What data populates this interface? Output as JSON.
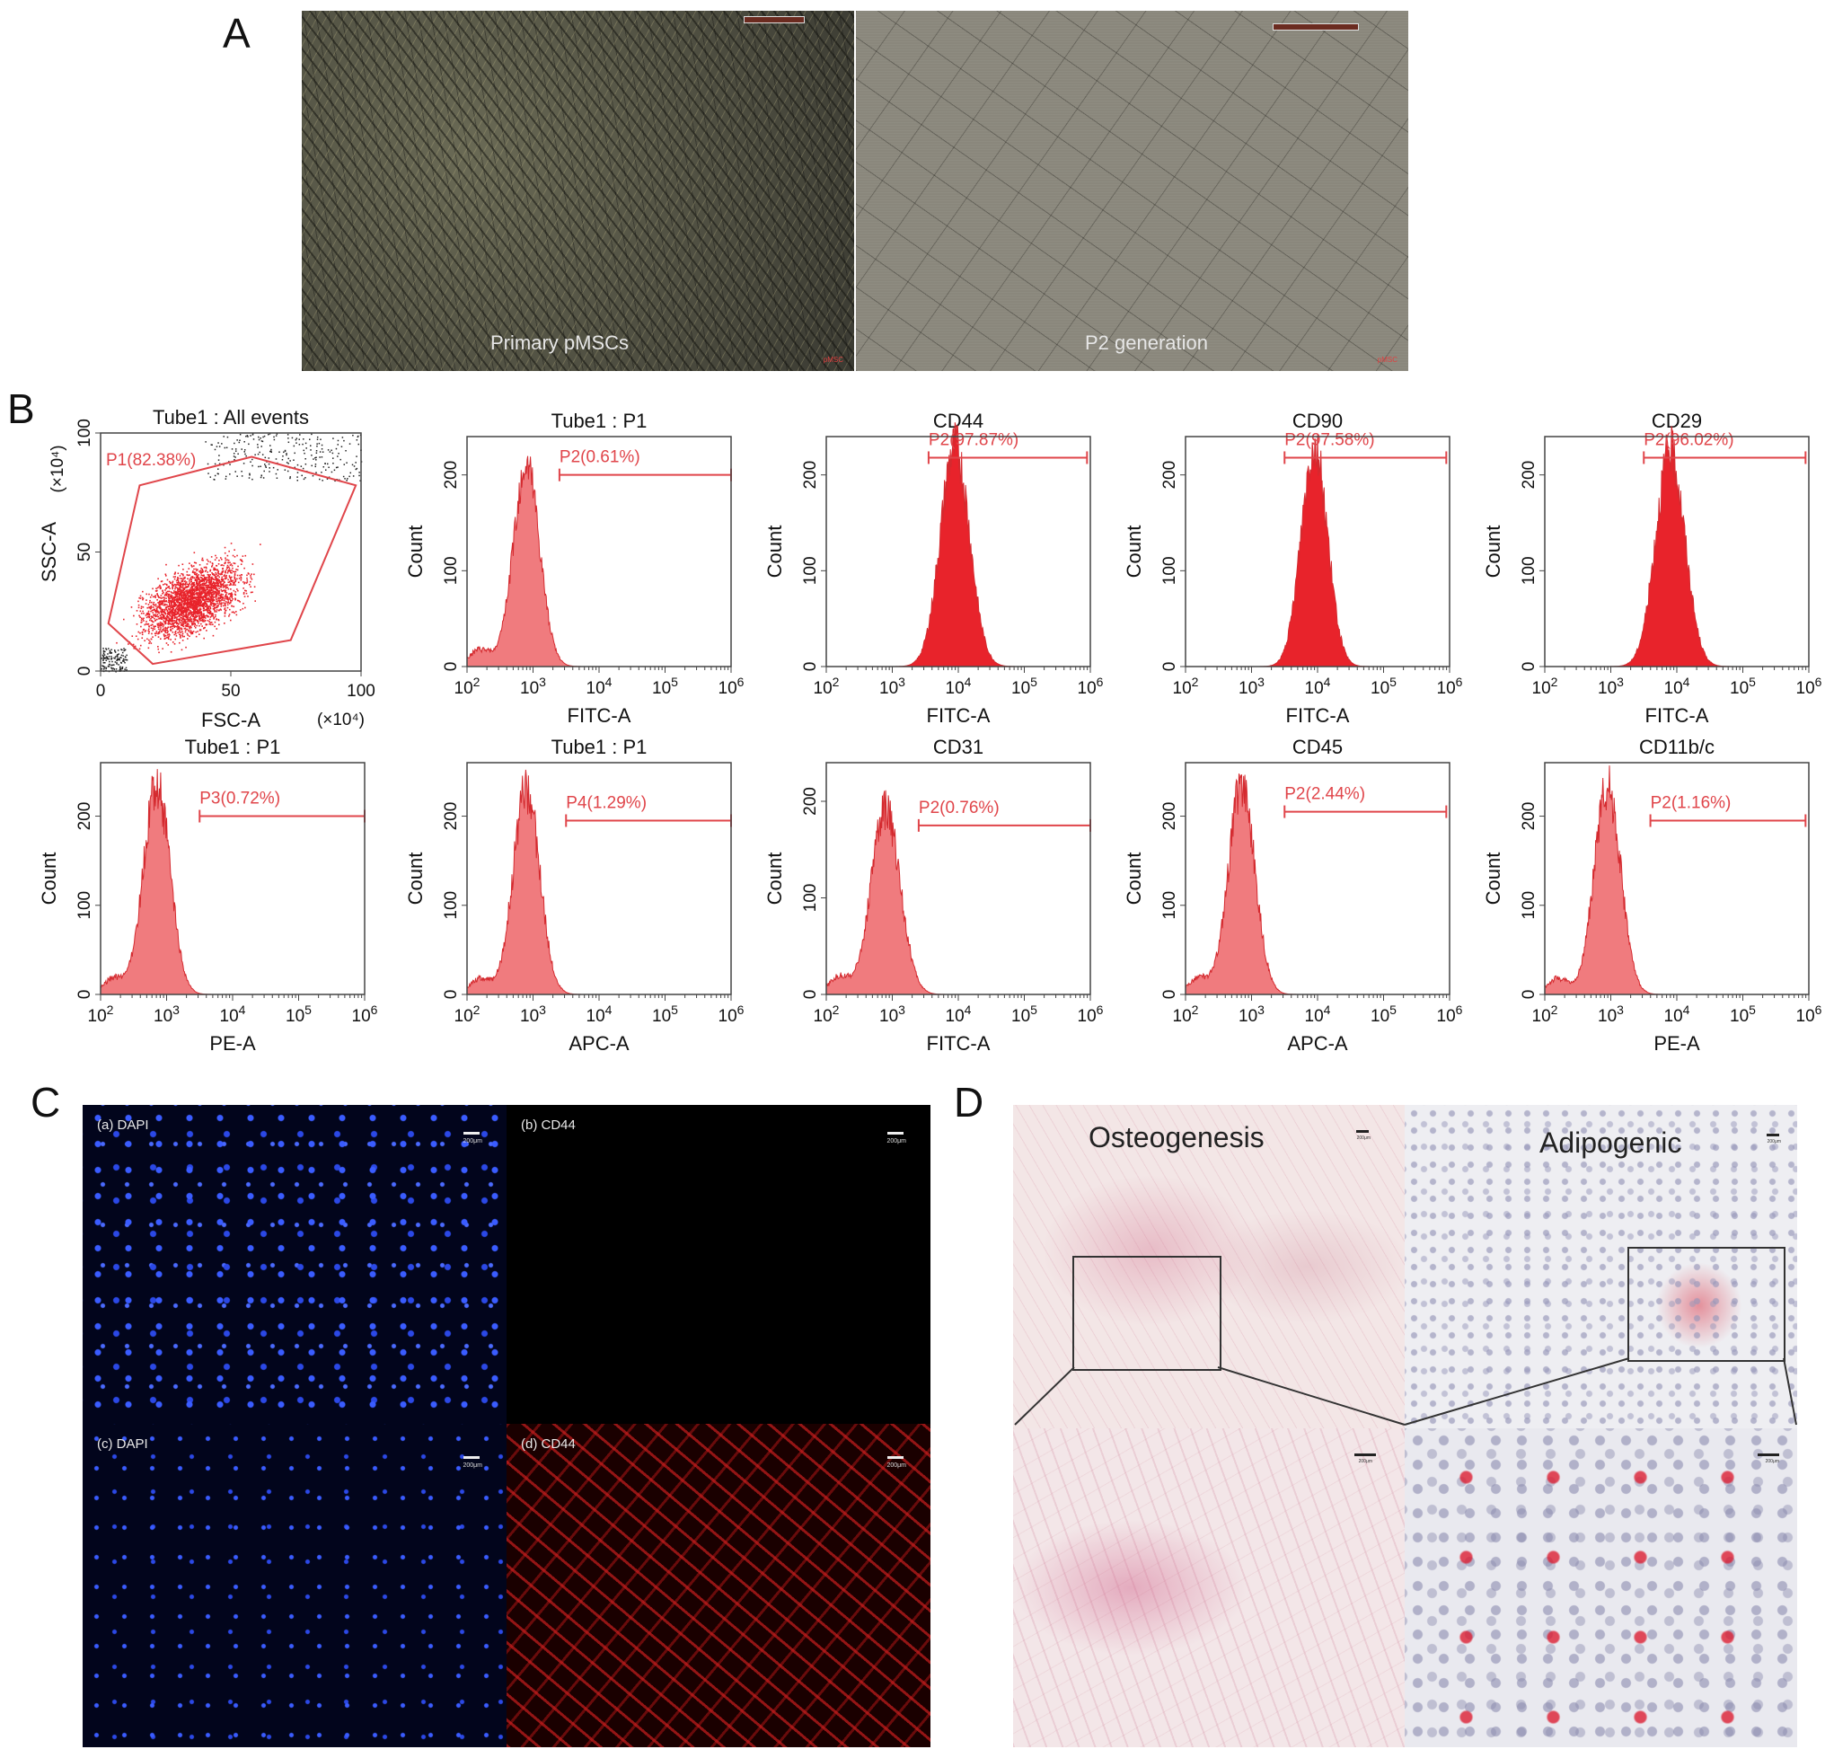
{
  "panels": {
    "A": {
      "letter": "A",
      "images": [
        {
          "caption": "Primary pMSCs",
          "scale": "200 μm",
          "watermark": "pMSC"
        },
        {
          "caption": "P2 generation",
          "scale": "200 μm",
          "watermark": "pMSC"
        }
      ]
    },
    "B": {
      "letter": "B"
    },
    "C": {
      "letter": "C",
      "images": [
        {
          "label": "(a) DAPI",
          "scale": "200μm"
        },
        {
          "label": "(b) CD44",
          "scale": "200μm"
        },
        {
          "label": "(c) DAPI",
          "scale": "200μm"
        },
        {
          "label": "(d) CD44",
          "scale": "200μm"
        }
      ]
    },
    "D": {
      "letter": "D",
      "titles": [
        "Osteogenesis",
        "Adipogenic"
      ],
      "scale": "200μm"
    }
  },
  "chart_data": [
    {
      "type": "scatter",
      "title": "Tube1 : All events",
      "xlabel": "FSC-A",
      "ylabel": "SSC-A",
      "x_unit": "(×10⁴)",
      "y_unit": "(×10⁴)",
      "xlim": [
        0,
        100
      ],
      "ylim": [
        0,
        100
      ],
      "xticks": [
        "0",
        "50",
        "100"
      ],
      "yticks": [
        "0",
        "50",
        "100"
      ],
      "gate": {
        "label": "P1(82.38%)",
        "name": "P1",
        "percent": 82.38,
        "polygon": [
          [
            3,
            20
          ],
          [
            15,
            78
          ],
          [
            58,
            90
          ],
          [
            98,
            78
          ],
          [
            73,
            13
          ],
          [
            20,
            3
          ]
        ]
      },
      "density_center": [
        35,
        30
      ],
      "series_colors": {
        "gated": "#e8232b",
        "ungated": "#222222"
      }
    },
    {
      "type": "histogram",
      "title": "Tube1 : P1",
      "xlabel": "FITC-A",
      "ylabel": "Count",
      "x_log_range": [
        2,
        6
      ],
      "ylim": [
        0,
        240
      ],
      "yticks": [
        0,
        100,
        200
      ],
      "peak_log": 2.9,
      "peak_count": 210,
      "sigma_log": 0.2,
      "gate": {
        "label": "P2(0.61%)",
        "percent": 0.61,
        "from_log": 3.4,
        "to_log": 6.0,
        "at": 200
      },
      "fill": "#f07b7e"
    },
    {
      "type": "histogram",
      "title": "CD44",
      "xlabel": "FITC-A",
      "ylabel": "Count",
      "x_log_range": [
        2,
        6
      ],
      "ylim": [
        0,
        240
      ],
      "yticks": [
        0,
        100,
        200
      ],
      "peak_log": 3.95,
      "peak_count": 230,
      "sigma_log": 0.22,
      "gate": {
        "label": "P2(97.87%)",
        "percent": 97.87,
        "from_log": 3.55,
        "to_log": 5.95,
        "at": 218
      },
      "fill": "#e8232b"
    },
    {
      "type": "histogram",
      "title": "CD90",
      "xlabel": "FITC-A",
      "ylabel": "Count",
      "x_log_range": [
        2,
        6
      ],
      "ylim": [
        0,
        240
      ],
      "yticks": [
        0,
        100,
        200
      ],
      "peak_log": 3.95,
      "peak_count": 230,
      "sigma_log": 0.2,
      "gate": {
        "label": "P2(97.58%)",
        "percent": 97.58,
        "from_log": 3.5,
        "to_log": 5.95,
        "at": 218
      },
      "fill": "#e8232b"
    },
    {
      "type": "histogram",
      "title": "CD29",
      "xlabel": "FITC-A",
      "ylabel": "Count",
      "x_log_range": [
        2,
        6
      ],
      "ylim": [
        0,
        240
      ],
      "yticks": [
        0,
        100,
        200
      ],
      "peak_log": 3.9,
      "peak_count": 225,
      "sigma_log": 0.22,
      "gate": {
        "label": "P2(96.02%)",
        "percent": 96.02,
        "from_log": 3.5,
        "to_log": 5.95,
        "at": 218
      },
      "fill": "#e8232b"
    },
    {
      "type": "histogram",
      "title": "Tube1 : P1",
      "xlabel": "PE-A",
      "ylabel": "Count",
      "x_log_range": [
        2,
        6
      ],
      "ylim": [
        0,
        260
      ],
      "yticks": [
        0,
        100,
        200
      ],
      "peak_log": 2.85,
      "peak_count": 235,
      "sigma_log": 0.2,
      "gate": {
        "label": "P3(0.72%)",
        "percent": 0.72,
        "from_log": 3.5,
        "to_log": 6.0,
        "at": 200
      },
      "fill": "#f07b7e"
    },
    {
      "type": "histogram",
      "title": "Tube1 : P1",
      "xlabel": "APC-A",
      "ylabel": "Count",
      "x_log_range": [
        2,
        6
      ],
      "ylim": [
        0,
        260
      ],
      "yticks": [
        0,
        100,
        200
      ],
      "peak_log": 2.9,
      "peak_count": 230,
      "sigma_log": 0.2,
      "gate": {
        "label": "P4(1.29%)",
        "percent": 1.29,
        "from_log": 3.5,
        "to_log": 6.0,
        "at": 195
      },
      "fill": "#f07b7e"
    },
    {
      "type": "histogram",
      "title": "CD31",
      "xlabel": "FITC-A",
      "ylabel": "Count",
      "x_log_range": [
        2,
        6
      ],
      "ylim": [
        0,
        240
      ],
      "yticks": [
        0,
        100,
        200
      ],
      "peak_log": 2.9,
      "peak_count": 190,
      "sigma_log": 0.22,
      "gate": {
        "label": "P2(0.76%)",
        "percent": 0.76,
        "from_log": 3.4,
        "to_log": 6.0,
        "at": 175
      },
      "fill": "#f07b7e"
    },
    {
      "type": "histogram",
      "title": "CD45",
      "xlabel": "APC-A",
      "ylabel": "Count",
      "x_log_range": [
        2,
        6
      ],
      "ylim": [
        0,
        260
      ],
      "yticks": [
        0,
        100,
        200
      ],
      "peak_log": 2.85,
      "peak_count": 235,
      "sigma_log": 0.2,
      "gate": {
        "label": "P2(2.44%)",
        "percent": 2.44,
        "from_log": 3.5,
        "to_log": 5.95,
        "at": 205
      },
      "fill": "#f07b7e"
    },
    {
      "type": "histogram",
      "title": "CD11b/c",
      "xlabel": "PE-A",
      "ylabel": "Count",
      "x_log_range": [
        2,
        6
      ],
      "ylim": [
        0,
        260
      ],
      "yticks": [
        0,
        100,
        200
      ],
      "peak_log": 2.95,
      "peak_count": 235,
      "sigma_log": 0.2,
      "gate": {
        "label": "P2(1.16%)",
        "percent": 1.16,
        "from_log": 3.6,
        "to_log": 5.95,
        "at": 195
      },
      "fill": "#f07b7e"
    }
  ]
}
